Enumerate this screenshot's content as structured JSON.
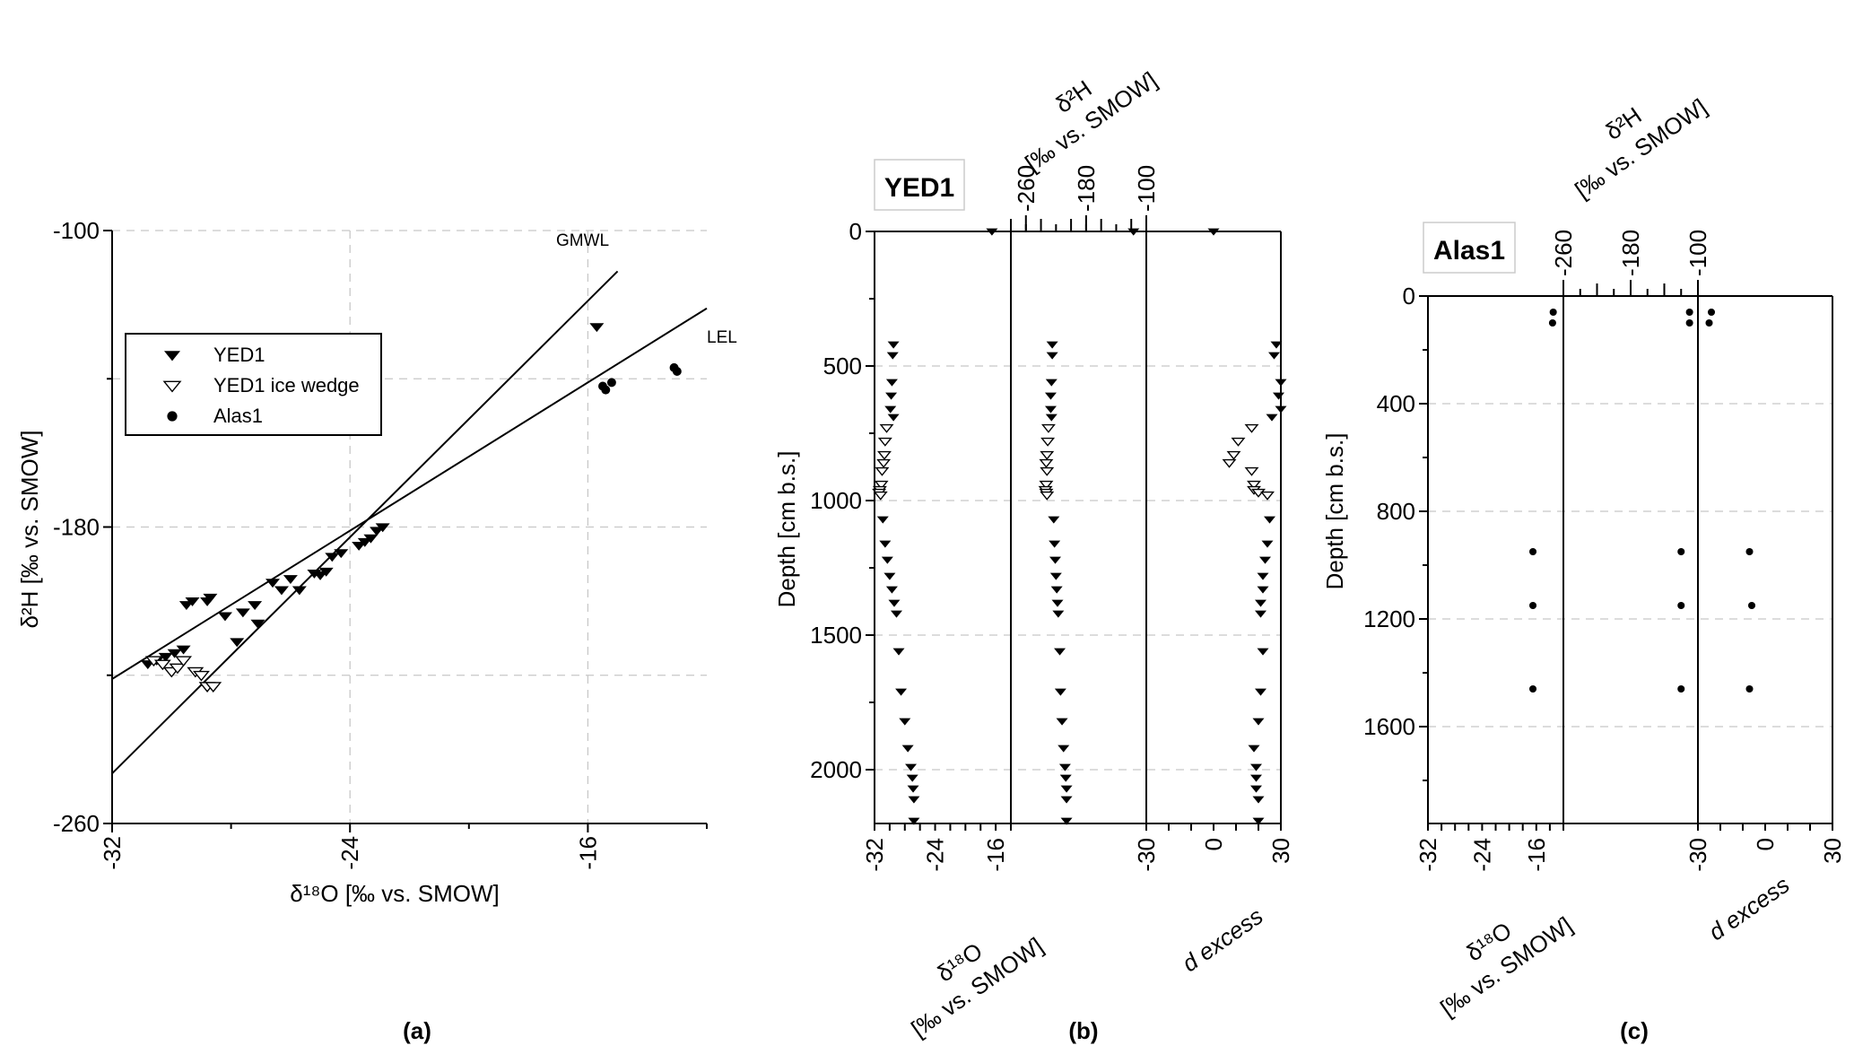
{
  "chart_data": [
    {
      "panel_label": "(a)",
      "type": "scatter",
      "xlabel": "δ¹⁸O [‰ vs. SMOW]",
      "ylabel": "δ²H [‰ vs. SMOW]",
      "xlim": [
        -32,
        -12
      ],
      "ylim": [
        -260,
        -100
      ],
      "xticks": [
        -32,
        -24,
        -16
      ],
      "yticks": [
        -100,
        -180,
        -260
      ],
      "grid": true,
      "legend_position": "upper-left",
      "lines": [
        {
          "label": "GMWL",
          "points": [
            [
              -32,
              -246.5
            ],
            [
              -15,
              -111
            ]
          ]
        },
        {
          "label": "LEL",
          "points": [
            [
              -32,
              -221
            ],
            [
              -12,
              -121
            ]
          ]
        }
      ],
      "series": [
        {
          "name": "YED1",
          "marker": "filled-down-triangle",
          "points": [
            [
              -30.8,
              -217
            ],
            [
              -30.5,
              -216
            ],
            [
              -30.2,
              -215
            ],
            [
              -29.9,
              -214
            ],
            [
              -29.6,
              -213
            ],
            [
              -29.5,
              -201
            ],
            [
              -29.3,
              -200
            ],
            [
              -28.8,
              -200
            ],
            [
              -28.7,
              -199
            ],
            [
              -28.2,
              -204
            ],
            [
              -27.8,
              -211
            ],
            [
              -27.1,
              -206
            ],
            [
              -26.6,
              -195
            ],
            [
              -26.3,
              -197
            ],
            [
              -25.7,
              -197
            ],
            [
              -25.0,
              -193
            ],
            [
              -24.8,
              -192
            ],
            [
              -27.2,
              -201
            ],
            [
              -27.6,
              -203
            ],
            [
              -26.0,
              -194
            ],
            [
              -25.2,
              -192.5
            ],
            [
              -24.6,
              -188
            ],
            [
              -24.3,
              -187
            ],
            [
              -23.7,
              -185
            ],
            [
              -23.5,
              -184
            ],
            [
              -23.3,
              -183
            ],
            [
              -23.1,
              -181
            ],
            [
              -22.9,
              -180
            ],
            [
              -15.7,
              -126
            ]
          ]
        },
        {
          "name": "YED1 ice wedge",
          "marker": "open-down-triangle",
          "points": [
            [
              -30.6,
              -216
            ],
            [
              -30.3,
              -217
            ],
            [
              -30.0,
              -219
            ],
            [
              -29.8,
              -218
            ],
            [
              -29.6,
              -216
            ],
            [
              -29.2,
              -219
            ],
            [
              -29.0,
              -220
            ],
            [
              -28.8,
              -223
            ],
            [
              -28.6,
              -223
            ]
          ]
        },
        {
          "name": "Alas1",
          "marker": "filled-circle",
          "points": [
            [
              -15.5,
              -142
            ],
            [
              -15.4,
              -143
            ],
            [
              -15.2,
              -141
            ],
            [
              -13.1,
              -137
            ],
            [
              -13.0,
              -138
            ]
          ]
        }
      ]
    },
    {
      "panel_label": "(b)",
      "type": "scatter",
      "profile_name": "YED1",
      "ylabel": "Depth [cm b.s.]",
      "ylim": [
        2200,
        0
      ],
      "yticks": [
        0,
        500,
        1000,
        1500,
        2000
      ],
      "grid": true,
      "columns": [
        {
          "name": "δ¹⁸O",
          "label_line2": "[‰ vs. SMOW]",
          "axis": "bottom",
          "xlim": [
            -32,
            -14
          ],
          "ticks": [
            -32,
            -24,
            -16
          ]
        },
        {
          "name": "δ²H",
          "label_line2": "[‰ vs. SMOW]",
          "axis": "top",
          "xlim": [
            -280,
            -100
          ],
          "ticks": [
            -260,
            -180,
            -100
          ]
        },
        {
          "name": "d excess",
          "axis": "bottom",
          "xlim": [
            -30,
            30
          ],
          "ticks": [
            -30,
            0,
            30
          ]
        }
      ],
      "series": [
        {
          "name": "YED1",
          "marker": "filled-down-triangle",
          "fields": [
            "depth",
            "d18O",
            "d2H",
            "d_excess"
          ],
          "rows": [
            [
              0,
              -16.5,
              -117,
              0
            ],
            [
              420,
              -29.5,
              -225,
              28
            ],
            [
              460,
              -29.6,
              -225,
              27
            ],
            [
              560,
              -29.7,
              -226,
              30
            ],
            [
              610,
              -29.8,
              -227,
              29
            ],
            [
              660,
              -29.9,
              -227,
              30
            ],
            [
              690,
              -29.5,
              -226,
              26
            ],
            [
              1070,
              -30.9,
              -223,
              25
            ],
            [
              1160,
              -30.6,
              -222,
              24
            ],
            [
              1220,
              -30.3,
              -221,
              23
            ],
            [
              1280,
              -30.0,
              -220,
              22
            ],
            [
              1330,
              -29.7,
              -219,
              22
            ],
            [
              1380,
              -29.4,
              -218,
              21
            ],
            [
              1420,
              -29.1,
              -217,
              21
            ],
            [
              1560,
              -28.8,
              -215,
              22
            ],
            [
              1710,
              -28.5,
              -214,
              21
            ],
            [
              1820,
              -28.0,
              -212,
              20
            ],
            [
              1920,
              -27.6,
              -210,
              18
            ],
            [
              1990,
              -27.2,
              -208,
              19
            ],
            [
              2030,
              -27.0,
              -207,
              19
            ],
            [
              2070,
              -26.9,
              -206,
              19
            ],
            [
              2110,
              -26.8,
              -206,
              20
            ],
            [
              2190,
              -26.8,
              -206,
              20
            ]
          ]
        },
        {
          "name": "YED1 ice wedge",
          "marker": "open-down-triangle",
          "fields": [
            "depth",
            "d18O",
            "d2H",
            "d_excess"
          ],
          "rows": [
            [
              730,
              -30.4,
              -230,
              17
            ],
            [
              780,
              -30.6,
              -231,
              11
            ],
            [
              830,
              -30.7,
              -232,
              9
            ],
            [
              860,
              -30.8,
              -233,
              7
            ],
            [
              890,
              -31.0,
              -232,
              17
            ],
            [
              940,
              -31.1,
              -233,
              18
            ],
            [
              960,
              -31.3,
              -234,
              18
            ],
            [
              970,
              -31.4,
              -233,
              20
            ],
            [
              980,
              -31.2,
              -232,
              24
            ]
          ]
        }
      ]
    },
    {
      "panel_label": "(c)",
      "type": "scatter",
      "profile_name": "Alas1",
      "ylabel": "Depth [cm b.s.]",
      "ylim": [
        1960,
        0
      ],
      "yticks": [
        0,
        400,
        800,
        1200,
        1600
      ],
      "grid": true,
      "columns": [
        {
          "name": "δ¹⁸O",
          "label_line2": "[‰ vs. SMOW]",
          "axis": "bottom",
          "xlim": [
            -32,
            -12
          ],
          "ticks": [
            -32,
            -24,
            -16
          ]
        },
        {
          "name": "δ²H",
          "label_line2": "[‰ vs. SMOW]",
          "axis": "top",
          "xlim": [
            -260,
            -100
          ],
          "ticks": [
            -260,
            -180,
            -100
          ]
        },
        {
          "name": "d excess",
          "axis": "bottom",
          "xlim": [
            -30,
            30
          ],
          "ticks": [
            -30,
            0,
            30
          ]
        }
      ],
      "series": [
        {
          "name": "Alas1",
          "marker": "filled-circle",
          "fields": [
            "depth",
            "d18O",
            "d2H",
            "d_excess"
          ],
          "rows": [
            [
              60,
              -13.5,
              -110,
              -24
            ],
            [
              100,
              -13.6,
              -110,
              -25
            ],
            [
              950,
              -16.5,
              -120,
              -7
            ],
            [
              1150,
              -16.5,
              -120,
              -6
            ],
            [
              1460,
              -16.5,
              -120,
              -7
            ]
          ]
        }
      ]
    }
  ]
}
